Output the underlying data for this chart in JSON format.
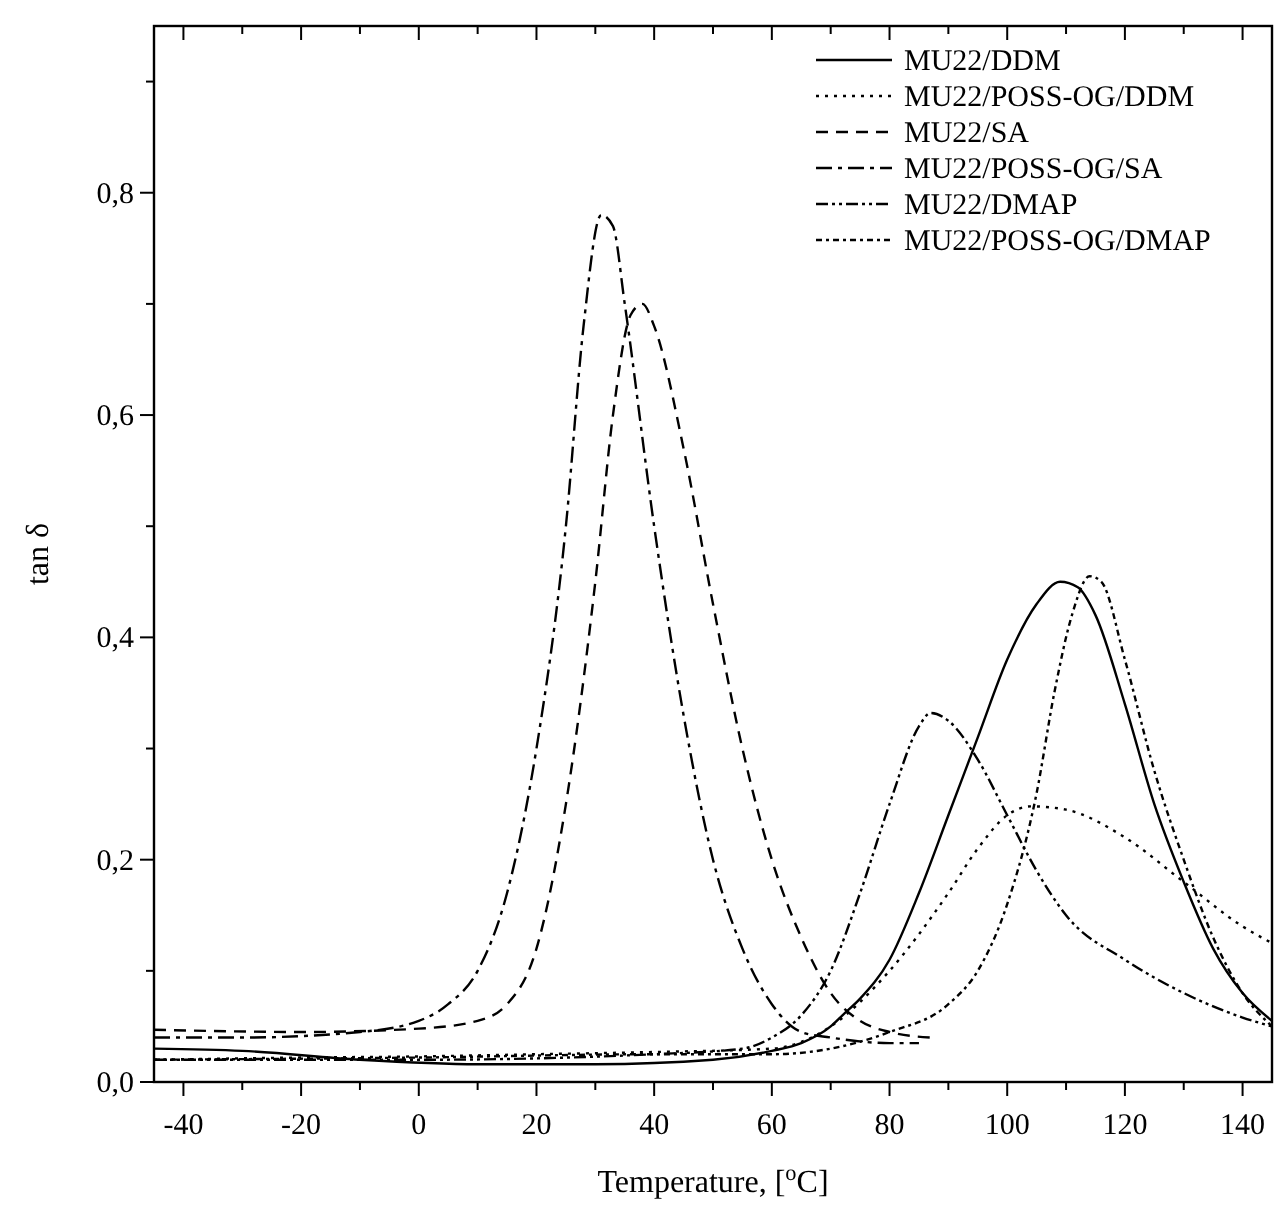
{
  "chart_data": {
    "type": "line",
    "xlabel": "Temperature, [$^{o}$C]",
    "ylabel": "tan δ",
    "xlim": [
      -45,
      145
    ],
    "ylim": [
      0,
      0.95
    ],
    "xticks": [
      {
        "value": -40,
        "label": "-40"
      },
      {
        "value": -30,
        "label": null
      },
      {
        "value": -20,
        "label": "-20"
      },
      {
        "value": -10,
        "label": null
      },
      0,
      {
        "value": 10,
        "label": null
      },
      20,
      {
        "value": 30,
        "label": null
      },
      40,
      {
        "value": 50,
        "label": null
      },
      60,
      {
        "value": 70,
        "label": null
      },
      80,
      {
        "value": 90,
        "label": null
      },
      100,
      {
        "value": 110,
        "label": null
      },
      120,
      {
        "value": 130,
        "label": null
      },
      140
    ],
    "yticks": [
      {
        "value": 0,
        "label": "0,0"
      },
      {
        "value": 0.1,
        "label": null
      },
      {
        "value": 0.2,
        "label": "0,2"
      },
      {
        "value": 0.3,
        "label": null
      },
      {
        "value": 0.4,
        "label": "0,4"
      },
      {
        "value": 0.5,
        "label": null
      },
      {
        "value": 0.6,
        "label": "0,6"
      },
      {
        "value": 0.7,
        "label": null
      },
      {
        "value": 0.8,
        "label": "0,8"
      },
      {
        "value": 0.9,
        "label": null
      }
    ],
    "grid": false,
    "legend": "top right",
    "series": [
      {
        "name": "MU22/DDM",
        "color": "#000000",
        "line_style": "solid",
        "x": [
          -45,
          -30,
          -10,
          10,
          30,
          50,
          60,
          65,
          70,
          72,
          75,
          80,
          85,
          90,
          95,
          100,
          105,
          109,
          112,
          115,
          120,
          125,
          130,
          135,
          140,
          145
        ],
        "values": [
          0.03,
          0.028,
          0.02,
          0.016,
          0.016,
          0.02,
          0.028,
          0.035,
          0.05,
          0.06,
          0.075,
          0.11,
          0.17,
          0.24,
          0.31,
          0.38,
          0.43,
          0.45,
          0.445,
          0.42,
          0.34,
          0.25,
          0.18,
          0.12,
          0.08,
          0.055
        ]
      },
      {
        "name": "MU22/POSS-OG/DDM",
        "color": "#000000",
        "line_style": "dotted",
        "x": [
          -45,
          -20,
          0,
          20,
          40,
          60,
          70,
          80,
          90,
          95,
          100,
          104,
          110,
          120,
          130,
          140,
          145
        ],
        "values": [
          0.02,
          0.022,
          0.023,
          0.025,
          0.027,
          0.03,
          0.05,
          0.1,
          0.17,
          0.21,
          0.24,
          0.248,
          0.245,
          0.22,
          0.18,
          0.14,
          0.125
        ]
      },
      {
        "name": "MU22/SA",
        "color": "#000000",
        "line_style": "dashed",
        "x": [
          -45,
          -20,
          0,
          10,
          15,
          20,
          25,
          30,
          33,
          36,
          38,
          40,
          45,
          50,
          55,
          60,
          65,
          70,
          75,
          80,
          87
        ],
        "values": [
          0.047,
          0.045,
          0.048,
          0.055,
          0.07,
          0.12,
          0.25,
          0.45,
          0.6,
          0.69,
          0.7,
          0.68,
          0.57,
          0.43,
          0.3,
          0.2,
          0.13,
          0.08,
          0.055,
          0.045,
          0.04
        ]
      },
      {
        "name": "MU22/POSS-OG/SA",
        "color": "#000000",
        "line_style": "dashdot",
        "x": [
          -45,
          -30,
          -10,
          0,
          5,
          10,
          15,
          20,
          25,
          28,
          31,
          33,
          35,
          40,
          45,
          50,
          55,
          60,
          65,
          70,
          80,
          85
        ],
        "values": [
          0.04,
          0.04,
          0.045,
          0.055,
          0.07,
          0.1,
          0.17,
          0.3,
          0.5,
          0.68,
          0.78,
          0.77,
          0.7,
          0.5,
          0.33,
          0.2,
          0.12,
          0.07,
          0.045,
          0.04,
          0.035,
          0.035
        ]
      },
      {
        "name": "MU22/DMAP",
        "color": "#000000",
        "line_style": "dashdotdot",
        "x": [
          -45,
          0,
          40,
          55,
          60,
          65,
          70,
          75,
          80,
          85,
          87,
          90,
          95,
          100,
          105,
          110,
          120,
          130,
          140,
          145
        ],
        "values": [
          0.02,
          0.02,
          0.025,
          0.03,
          0.04,
          0.06,
          0.1,
          0.17,
          0.25,
          0.32,
          0.332,
          0.325,
          0.29,
          0.24,
          0.19,
          0.15,
          0.11,
          0.08,
          0.058,
          0.05
        ]
      },
      {
        "name": "MU22/POSS-OG/DMAP",
        "color": "#000000",
        "line_style": "shortdashdot",
        "x": [
          -45,
          0,
          40,
          60,
          70,
          80,
          90,
          95,
          100,
          105,
          108,
          111,
          114,
          116,
          120,
          125,
          130,
          135,
          140,
          145
        ],
        "values": [
          0.02,
          0.022,
          0.025,
          0.025,
          0.03,
          0.045,
          0.07,
          0.1,
          0.16,
          0.26,
          0.35,
          0.42,
          0.455,
          0.45,
          0.38,
          0.28,
          0.2,
          0.13,
          0.08,
          0.05
        ]
      }
    ]
  }
}
